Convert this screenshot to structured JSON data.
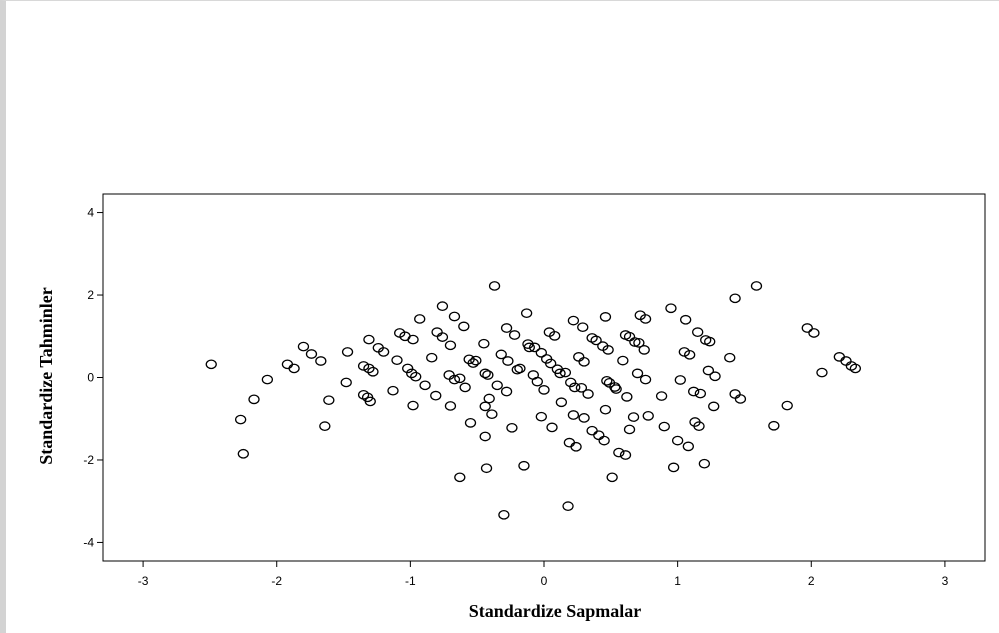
{
  "chart_data": {
    "type": "scatter",
    "title": "",
    "xlabel": "Standardize Sapmalar",
    "ylabel": "Standardize Tahminler",
    "xlim": [
      -3.3,
      3.3
    ],
    "ylim": [
      -4.45,
      4.45
    ],
    "xticks": [
      -3,
      -2,
      -1,
      0,
      1,
      2,
      3
    ],
    "yticks": [
      -4,
      -2,
      0,
      2,
      4
    ],
    "xtick_labels": [
      "-3",
      "-2",
      "-1",
      "0",
      "1",
      "2",
      "3"
    ],
    "ytick_labels": [
      "-4",
      "-2",
      "0",
      "2",
      "4"
    ],
    "grid": false,
    "marker": "open-circle",
    "colors": {
      "marker": "#000000",
      "axes": "#000000",
      "background": "#ffffff"
    },
    "points": [
      [
        -2.49,
        0.32
      ],
      [
        -2.27,
        -1.02
      ],
      [
        -2.25,
        -1.85
      ],
      [
        -2.17,
        -0.53
      ],
      [
        -2.07,
        -0.05
      ],
      [
        -1.92,
        0.32
      ],
      [
        -1.87,
        0.22
      ],
      [
        -1.8,
        0.75
      ],
      [
        -1.74,
        0.57
      ],
      [
        -1.67,
        0.4
      ],
      [
        -1.64,
        -1.18
      ],
      [
        -1.61,
        -0.55
      ],
      [
        -1.47,
        0.62
      ],
      [
        -1.48,
        -0.12
      ],
      [
        -1.35,
        -0.42
      ],
      [
        -1.35,
        0.28
      ],
      [
        -1.32,
        -0.48
      ],
      [
        -1.3,
        -0.58
      ],
      [
        -1.31,
        0.92
      ],
      [
        -1.28,
        0.14
      ],
      [
        -1.31,
        0.22
      ],
      [
        -1.24,
        0.72
      ],
      [
        -1.2,
        0.62
      ],
      [
        -1.13,
        -0.32
      ],
      [
        -1.1,
        0.42
      ],
      [
        -1.08,
        1.08
      ],
      [
        -1.04,
        1.0
      ],
      [
        -1.02,
        0.22
      ],
      [
        -0.98,
        0.92
      ],
      [
        -0.99,
        0.1
      ],
      [
        -0.98,
        -0.68
      ],
      [
        -0.96,
        0.02
      ],
      [
        -0.93,
        1.42
      ],
      [
        -0.89,
        -0.19
      ],
      [
        -0.84,
        0.48
      ],
      [
        -0.81,
        -0.44
      ],
      [
        -0.8,
        1.1
      ],
      [
        -0.76,
        0.98
      ],
      [
        -0.76,
        1.73
      ],
      [
        -0.71,
        0.06
      ],
      [
        -0.7,
        -0.69
      ],
      [
        -0.7,
        0.78
      ],
      [
        -0.67,
        1.48
      ],
      [
        -0.67,
        -0.05
      ],
      [
        -0.63,
        -0.02
      ],
      [
        -0.63,
        -2.42
      ],
      [
        -0.6,
        1.24
      ],
      [
        -0.59,
        -0.24
      ],
      [
        -0.56,
        0.44
      ],
      [
        -0.55,
        -1.1
      ],
      [
        -0.53,
        0.35
      ],
      [
        -0.51,
        0.41
      ],
      [
        -0.45,
        0.82
      ],
      [
        -0.44,
        0.1
      ],
      [
        -0.44,
        -0.7
      ],
      [
        -0.44,
        -1.43
      ],
      [
        -0.42,
        0.06
      ],
      [
        -0.43,
        -2.2
      ],
      [
        -0.41,
        -0.51
      ],
      [
        -0.39,
        -0.89
      ],
      [
        -0.37,
        2.22
      ],
      [
        -0.35,
        -0.19
      ],
      [
        -0.32,
        0.56
      ],
      [
        -0.3,
        -3.33
      ],
      [
        -0.28,
        -0.34
      ],
      [
        -0.28,
        1.2
      ],
      [
        -0.27,
        0.4
      ],
      [
        -0.24,
        -1.22
      ],
      [
        -0.22,
        1.03
      ],
      [
        -0.2,
        0.19
      ],
      [
        -0.18,
        0.22
      ],
      [
        -0.15,
        -2.14
      ],
      [
        -0.12,
        0.81
      ],
      [
        -0.13,
        1.56
      ],
      [
        -0.11,
        0.73
      ],
      [
        -0.08,
        0.06
      ],
      [
        -0.07,
        0.73
      ],
      [
        -0.05,
        -0.1
      ],
      [
        -0.02,
        -0.95
      ],
      [
        -0.02,
        0.6
      ],
      [
        0.0,
        -0.3
      ],
      [
        0.02,
        0.45
      ],
      [
        0.04,
        1.1
      ],
      [
        0.05,
        0.34
      ],
      [
        0.06,
        -1.21
      ],
      [
        0.08,
        1.01
      ],
      [
        0.1,
        0.2
      ],
      [
        0.12,
        0.1
      ],
      [
        0.13,
        -0.6
      ],
      [
        0.16,
        0.12
      ],
      [
        0.19,
        -1.58
      ],
      [
        0.2,
        -0.12
      ],
      [
        0.18,
        -3.12
      ],
      [
        0.22,
        -0.91
      ],
      [
        0.22,
        1.38
      ],
      [
        0.23,
        -0.24
      ],
      [
        0.24,
        -1.68
      ],
      [
        0.26,
        0.5
      ],
      [
        0.28,
        -0.25
      ],
      [
        0.29,
        1.22
      ],
      [
        0.3,
        -0.98
      ],
      [
        0.3,
        0.38
      ],
      [
        0.33,
        -0.4
      ],
      [
        0.36,
        0.96
      ],
      [
        0.36,
        -1.29
      ],
      [
        0.39,
        0.9
      ],
      [
        0.41,
        -1.4
      ],
      [
        0.44,
        0.76
      ],
      [
        0.45,
        -1.53
      ],
      [
        0.46,
        1.47
      ],
      [
        0.46,
        -0.78
      ],
      [
        0.47,
        -0.08
      ],
      [
        0.48,
        0.67
      ],
      [
        0.49,
        -0.13
      ],
      [
        0.51,
        -2.42
      ],
      [
        0.53,
        -0.23
      ],
      [
        0.54,
        -0.28
      ],
      [
        0.56,
        -1.82
      ],
      [
        0.59,
        0.41
      ],
      [
        0.61,
        -1.88
      ],
      [
        0.61,
        1.03
      ],
      [
        0.62,
        -0.47
      ],
      [
        0.64,
        0.99
      ],
      [
        0.64,
        -1.26
      ],
      [
        0.67,
        -0.96
      ],
      [
        0.68,
        0.86
      ],
      [
        0.7,
        0.1
      ],
      [
        0.71,
        0.84
      ],
      [
        0.72,
        1.51
      ],
      [
        0.75,
        0.67
      ],
      [
        0.76,
        1.42
      ],
      [
        0.76,
        -0.05
      ],
      [
        0.78,
        -0.93
      ],
      [
        0.88,
        -0.45
      ],
      [
        0.9,
        -1.19
      ],
      [
        0.95,
        1.68
      ],
      [
        0.97,
        -2.18
      ],
      [
        1.0,
        -1.53
      ],
      [
        1.02,
        -0.06
      ],
      [
        1.05,
        0.62
      ],
      [
        1.06,
        1.4
      ],
      [
        1.08,
        -1.67
      ],
      [
        1.09,
        0.55
      ],
      [
        1.12,
        -0.34
      ],
      [
        1.13,
        -1.08
      ],
      [
        1.15,
        1.1
      ],
      [
        1.16,
        -1.18
      ],
      [
        1.17,
        -0.39
      ],
      [
        1.2,
        -2.09
      ],
      [
        1.21,
        0.91
      ],
      [
        1.23,
        0.17
      ],
      [
        1.24,
        0.87
      ],
      [
        1.27,
        -0.7
      ],
      [
        1.28,
        0.03
      ],
      [
        1.39,
        0.48
      ],
      [
        1.43,
        -0.4
      ],
      [
        1.43,
        1.92
      ],
      [
        1.47,
        -0.52
      ],
      [
        1.59,
        2.22
      ],
      [
        1.72,
        -1.17
      ],
      [
        1.82,
        -0.68
      ],
      [
        1.97,
        1.2
      ],
      [
        2.02,
        1.08
      ],
      [
        2.08,
        0.12
      ],
      [
        2.21,
        0.5
      ],
      [
        2.26,
        0.4
      ],
      [
        2.3,
        0.28
      ],
      [
        2.33,
        0.22
      ]
    ]
  }
}
